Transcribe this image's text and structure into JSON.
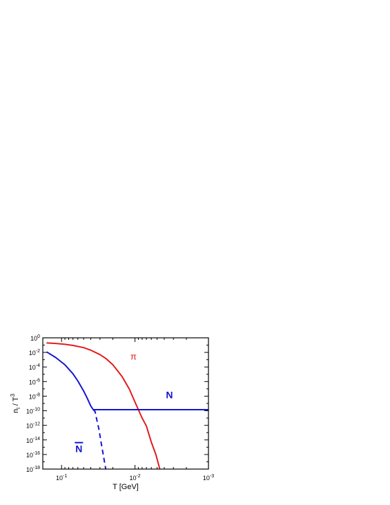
{
  "chart_data": {
    "type": "line",
    "xlabel": "T [GeV]",
    "ylabel_main": "n",
    "ylabel_sub": "i",
    "ylabel_rest": " / T",
    "ylabel_sup": "3",
    "x_scale": "log",
    "x_reversed": true,
    "y_scale": "log",
    "xlim": [
      0.18,
      0.001
    ],
    "ylim": [
      1e-18,
      1
    ],
    "grid": false,
    "x_ticks": [
      {
        "value": 0.1,
        "base": "10",
        "exp": "-1"
      },
      {
        "value": 0.01,
        "base": "10",
        "exp": "-2"
      },
      {
        "value": 0.001,
        "base": "10",
        "exp": "-3"
      }
    ],
    "y_ticks": [
      {
        "value": 1,
        "base": "10",
        "exp": "0"
      },
      {
        "value": 0.01,
        "base": "10",
        "exp": "-2"
      },
      {
        "value": 0.0001,
        "base": "10",
        "exp": "-4"
      },
      {
        "value": 1e-06,
        "base": "10",
        "exp": "-6"
      },
      {
        "value": 1e-08,
        "base": "10",
        "exp": "-8"
      },
      {
        "value": 1e-10,
        "base": "10",
        "exp": "-10"
      },
      {
        "value": 1e-12,
        "base": "10",
        "exp": "-12"
      },
      {
        "value": 1e-14,
        "base": "10",
        "exp": "-14"
      },
      {
        "value": 1e-16,
        "base": "10",
        "exp": "-16"
      },
      {
        "value": 1e-18,
        "base": "10",
        "exp": "-18"
      }
    ],
    "series": [
      {
        "name": "π",
        "color": "#e41a1c",
        "dash": "solid",
        "points": [
          [
            0.16,
            0.2
          ],
          [
            0.12,
            0.17
          ],
          [
            0.09,
            0.13
          ],
          [
            0.07,
            0.09
          ],
          [
            0.05,
            0.045
          ],
          [
            0.04,
            0.02
          ],
          [
            0.03,
            0.005
          ],
          [
            0.025,
            0.0015
          ],
          [
            0.02,
            0.0002
          ],
          [
            0.015,
            5e-06
          ],
          [
            0.012,
            1e-07
          ],
          [
            0.01,
            1.5e-09
          ],
          [
            0.008,
            1e-11
          ],
          [
            0.007,
            8e-13
          ],
          [
            0.006,
            5e-15
          ],
          [
            0.0052,
            1e-16
          ],
          [
            0.0046,
            1e-18
          ]
        ]
      },
      {
        "name": "N",
        "color": "#1414d2",
        "dash": "solid",
        "points": [
          [
            0.16,
            0.012
          ],
          [
            0.12,
            0.002
          ],
          [
            0.09,
            0.0002
          ],
          [
            0.07,
            1.2e-05
          ],
          [
            0.06,
            1.2e-06
          ],
          [
            0.05,
            5e-08
          ],
          [
            0.045,
            6e-09
          ],
          [
            0.04,
            4.5e-10
          ],
          [
            0.037,
            1.4e-10
          ],
          [
            0.02,
            1.4e-10
          ],
          [
            0.01,
            1.4e-10
          ],
          [
            0.001,
            1.4e-10
          ]
        ]
      },
      {
        "name": "N-bar",
        "color": "#1414d2",
        "dash": "dashed",
        "points": [
          [
            0.037,
            1.4e-10
          ],
          [
            0.035,
            8e-11
          ],
          [
            0.033,
            5e-12
          ],
          [
            0.031,
            3e-13
          ],
          [
            0.029,
            5e-15
          ],
          [
            0.027,
            8e-17
          ],
          [
            0.025,
            1e-18
          ]
        ]
      }
    ],
    "annotations": [
      {
        "text": "π",
        "color": "#e41a1c",
        "x": 0.0105,
        "y": 0.001,
        "bold": false,
        "overline": false
      },
      {
        "text": "N",
        "color": "#1414d2",
        "x": 0.0034,
        "y": 5e-09,
        "bold": true,
        "overline": false
      },
      {
        "text": "N",
        "color": "#1414d2",
        "x": 0.058,
        "y": 2e-16,
        "bold": true,
        "overline": true
      }
    ]
  }
}
